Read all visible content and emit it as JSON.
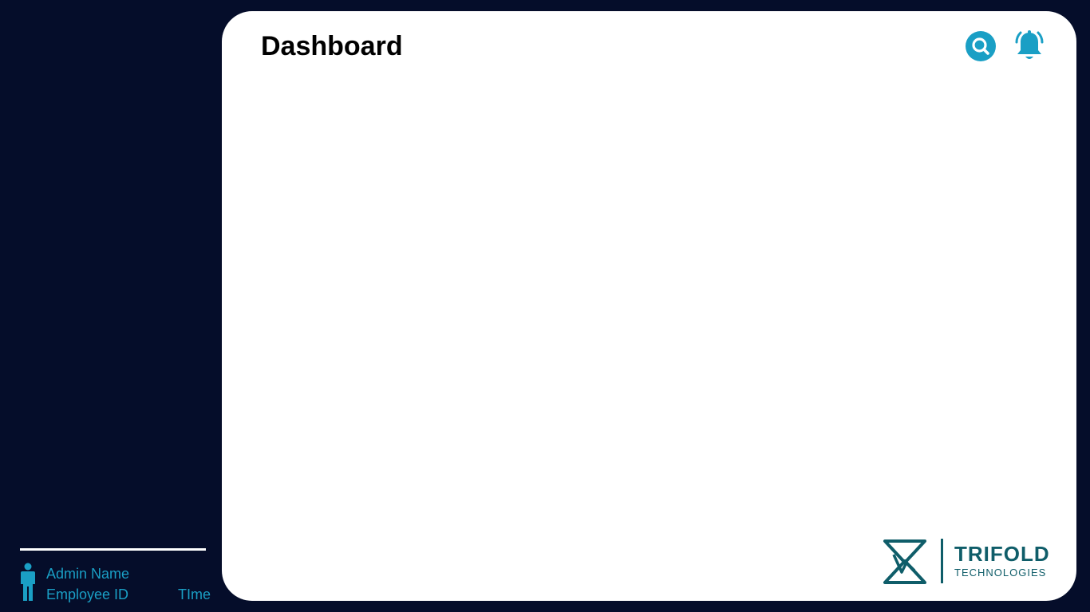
{
  "header": {
    "title": "Dashboard"
  },
  "icons": {
    "search": "search-icon",
    "notifications": "bell-icon",
    "user": "user-icon"
  },
  "sidebar": {
    "admin_name": "Admin Name",
    "employee_id": "Employee ID",
    "time_label": "TIme"
  },
  "logo": {
    "name": "TRIFOLD",
    "subtitle": "TECHNOLOGIES"
  },
  "colors": {
    "background": "#050d2a",
    "panel": "#ffffff",
    "accent": "#1a9fc5",
    "logo": "#0f5d69"
  }
}
